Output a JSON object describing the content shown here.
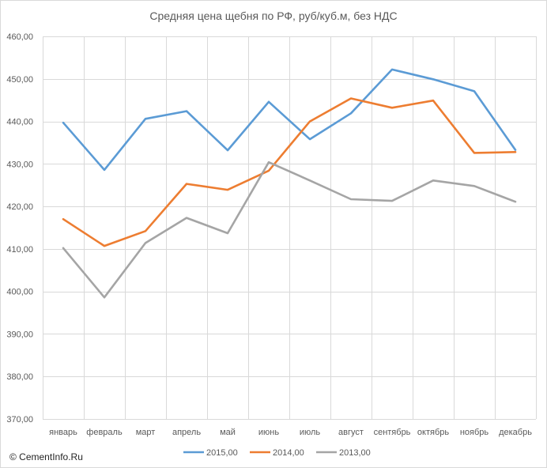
{
  "chart_data": {
    "type": "line",
    "title": "Средняя цена щебня по РФ, руб/куб.м, без НДС",
    "xlabel": "",
    "ylabel": "",
    "categories": [
      "январь",
      "февраль",
      "март",
      "апрель",
      "май",
      "июнь",
      "июль",
      "август",
      "сентябрь",
      "октябрь",
      "ноябрь",
      "декабрь"
    ],
    "ylim": [
      370,
      460
    ],
    "yticks": [
      "370,00",
      "380,00",
      "390,00",
      "400,00",
      "410,00",
      "420,00",
      "430,00",
      "440,00",
      "450,00",
      "460,00"
    ],
    "grid": true,
    "legend_position": "bottom",
    "series": [
      {
        "name": "2015,00",
        "color": "#5b9bd5",
        "values": [
          439.7,
          428.6,
          440.6,
          442.4,
          433.2,
          444.6,
          435.8,
          441.9,
          452.2,
          449.9,
          447.1,
          433.3
        ]
      },
      {
        "name": "2014,00",
        "color": "#ed7d31",
        "values": [
          417.0,
          410.7,
          414.2,
          425.3,
          423.9,
          428.4,
          440.0,
          445.4,
          443.2,
          444.9,
          432.6,
          432.8
        ]
      },
      {
        "name": "2013,00",
        "color": "#a5a5a5",
        "values": [
          410.2,
          398.6,
          411.4,
          417.3,
          413.7,
          430.4,
          426.1,
          421.7,
          421.3,
          426.1,
          424.8,
          421.1
        ]
      }
    ]
  },
  "footer": {
    "copyright": "© CementInfo.Ru"
  }
}
